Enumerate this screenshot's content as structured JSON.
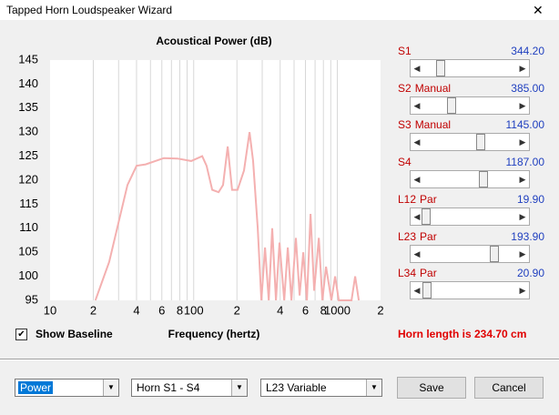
{
  "window": {
    "title": "Tapped Horn Loudspeaker Wizard"
  },
  "chart_data": {
    "type": "line",
    "title": "Acoustical Power (dB)",
    "x_label": "Frequency (hertz)",
    "log_x": true,
    "xlim": [
      10,
      2000
    ],
    "ylim": [
      95,
      145
    ],
    "xticks": [
      10,
      {
        "value": 20,
        "label": "2"
      },
      {
        "value": 40,
        "label": "4"
      },
      {
        "value": 60,
        "label": "6"
      },
      {
        "value": 80,
        "label": "8"
      },
      100,
      {
        "value": 200,
        "label": "2"
      },
      {
        "value": 400,
        "label": "4"
      },
      {
        "value": 600,
        "label": "6"
      },
      {
        "value": 800,
        "label": "8"
      },
      1000,
      {
        "value": 2000,
        "label": "2"
      }
    ],
    "xminor": [
      30,
      50,
      70,
      90,
      300,
      500,
      700,
      900
    ],
    "yticks": [
      95,
      100,
      105,
      110,
      115,
      120,
      125,
      130,
      135,
      140,
      145
    ],
    "xgrid": true,
    "series": [
      {
        "color": "#f4b0b0",
        "x": [
          20.7,
          25.8,
          34.6,
          40,
          46.3,
          62,
          77,
          96,
          114.6,
          123,
          134.5,
          149,
          160,
          172.5,
          185,
          202,
          224,
          245,
          259,
          279,
          296,
          314,
          333,
          352,
          374,
          396,
          427,
          452,
          479,
          515,
          546,
          579,
          614,
          651,
          690,
          743,
          787,
          834,
          910,
          966,
          1023,
          1256,
          1331,
          1412
        ],
        "values": [
          95,
          103,
          119,
          123,
          123.3,
          124.6,
          124.5,
          124,
          125,
          123,
          118,
          117.5,
          119,
          127,
          118,
          118,
          122,
          130,
          124,
          110,
          95,
          106,
          95,
          110,
          95,
          107,
          95,
          106,
          95,
          108,
          96,
          105,
          95,
          113,
          97,
          108,
          95,
          102,
          95,
          100,
          95,
          95,
          100,
          95
        ]
      }
    ]
  },
  "sliders": [
    {
      "name": "S1",
      "value": "344.20"
    },
    {
      "name": "S2",
      "mode": "Manual",
      "value": "385.00"
    },
    {
      "name": "S3",
      "mode": "Manual",
      "value": "1145.00"
    },
    {
      "name": "S4",
      "value": "1187.00"
    },
    {
      "name": "L12",
      "mode": "Par",
      "value": "19.90"
    },
    {
      "name": "L23",
      "mode": "Par",
      "value": "193.90"
    },
    {
      "name": "L34",
      "mode": "Par",
      "value": "20.90"
    }
  ],
  "checkbox": {
    "label": "Show Baseline"
  },
  "horn_length": "Horn length is 234.70 cm",
  "dropdowns": [
    "Power",
    "Horn S1 - S4",
    "L23 Variable"
  ],
  "buttons": {
    "save": "Save",
    "cancel": "Cancel"
  }
}
